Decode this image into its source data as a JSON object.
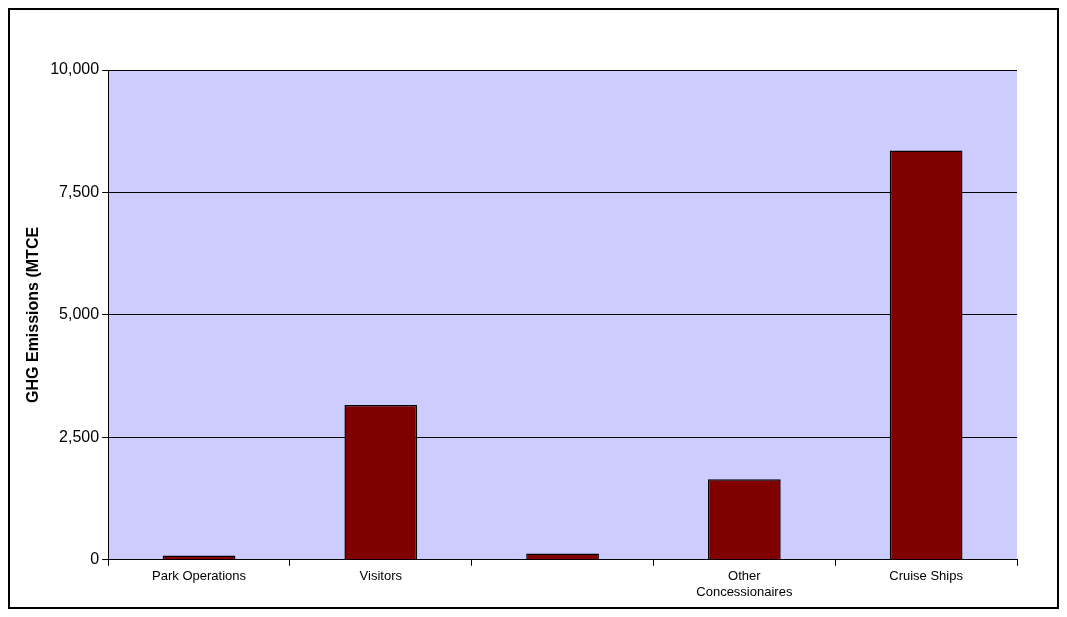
{
  "chart_data": {
    "type": "bar",
    "ylabel": "GHG Emissions (MTCE",
    "categories": [
      "Park Operations",
      "Visitors",
      null,
      "Other Concessionaires",
      "Cruise Ships"
    ],
    "values": [
      90,
      3160,
      130,
      1645,
      8355
    ],
    "color": "#800000",
    "ylim": [
      0,
      10000
    ],
    "yticks": [
      {
        "value": 0,
        "label": "0"
      },
      {
        "value": 2500,
        "label": "2,500"
      },
      {
        "value": 5000,
        "label": "5,000"
      },
      {
        "value": 7500,
        "label": "7,500"
      },
      {
        "value": 10000,
        "label": "10,000"
      }
    ],
    "grid": "y",
    "legend": false
  }
}
